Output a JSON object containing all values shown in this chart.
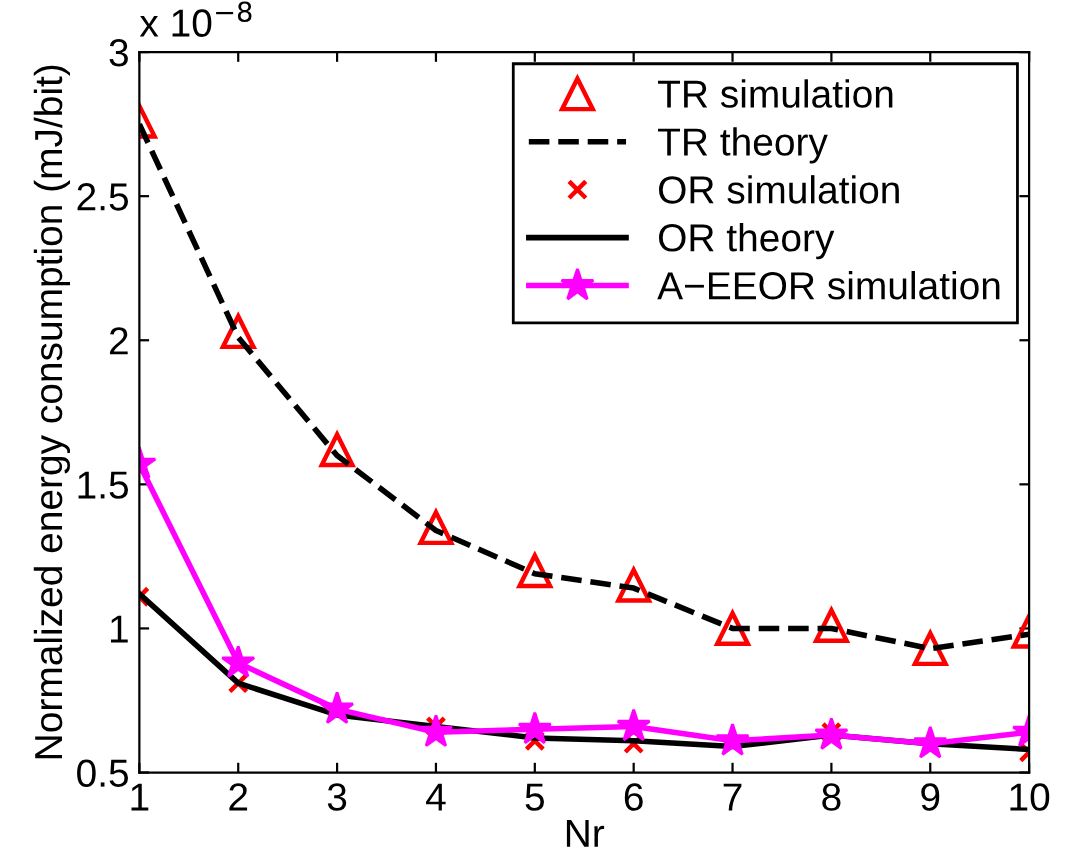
{
  "chart_data": {
    "type": "line",
    "xlabel": "Nr",
    "ylabel": "Normalized energy consumption (mJ/bit)",
    "annotations": [
      "x 10$^{−8}$"
    ],
    "x": [
      1,
      2,
      3,
      4,
      5,
      6,
      7,
      8,
      9,
      10
    ],
    "xlim": [
      1,
      10
    ],
    "xticks": [
      1,
      2,
      3,
      4,
      5,
      6,
      7,
      8,
      9,
      10
    ],
    "ylim": [
      0.5,
      3
    ],
    "yticks": [
      0.5,
      1,
      1.5,
      2,
      2.5,
      3
    ],
    "grid": false,
    "legend": "top right",
    "series": [
      {
        "name": "TR simulation",
        "type": "scatter",
        "marker": "triangle",
        "color": "#ff0000",
        "values": [
          2.76,
          2.03,
          1.62,
          1.35,
          1.2,
          1.15,
          1.0,
          1.01,
          0.93,
          0.99
        ]
      },
      {
        "name": "TR theory",
        "line_style": "dashed",
        "color": "#000000",
        "values": [
          2.75,
          2.01,
          1.6,
          1.34,
          1.19,
          1.14,
          1.0,
          1.0,
          0.93,
          0.98
        ]
      },
      {
        "name": "OR simulation",
        "type": "scatter",
        "marker": "cross",
        "color": "#ff0000",
        "values": [
          1.11,
          0.81,
          null,
          0.66,
          0.61,
          0.6,
          null,
          0.64,
          null,
          0.57
        ]
      },
      {
        "name": "OR theory",
        "line_style": "solid",
        "color": "#000000",
        "values": [
          1.12,
          0.81,
          0.7,
          0.66,
          0.62,
          0.61,
          0.59,
          0.63,
          0.6,
          0.58
        ]
      },
      {
        "name": "A−EEOR simulation",
        "line_style": "solid",
        "marker": "star",
        "color": "#ff00ff",
        "values": [
          1.57,
          0.88,
          0.72,
          0.64,
          0.65,
          0.66,
          0.61,
          0.63,
          0.6,
          0.64
        ]
      }
    ]
  }
}
